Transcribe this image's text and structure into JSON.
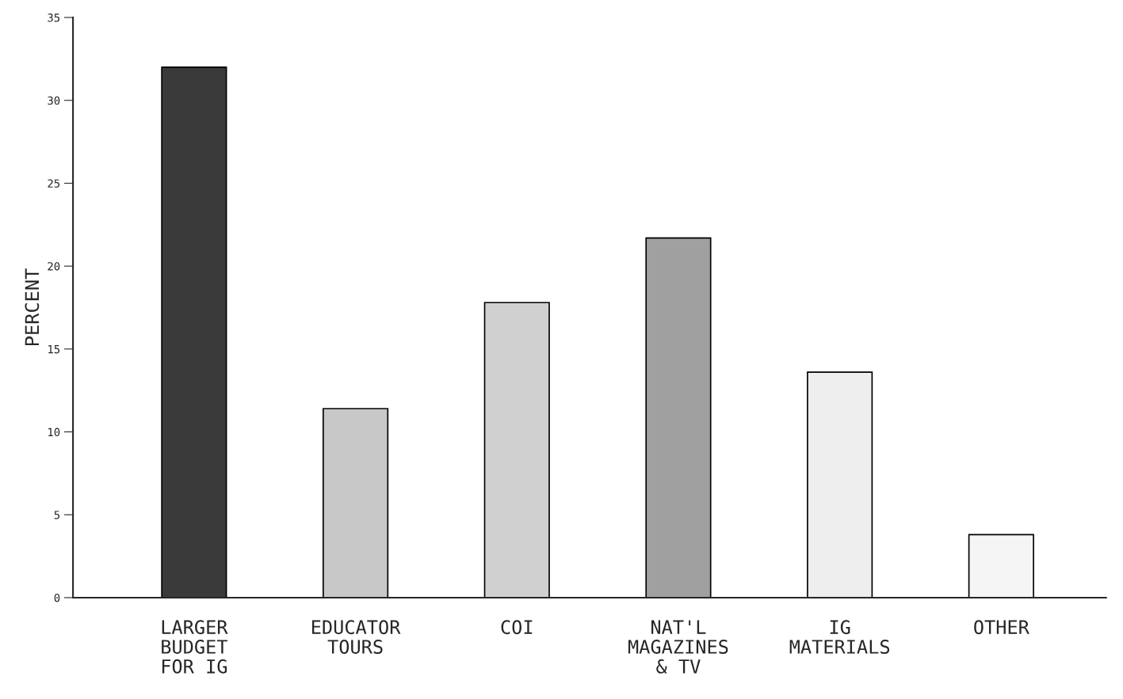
{
  "chart_data": {
    "type": "bar",
    "ylabel": "PERCENT",
    "categories": [
      "LARGER\nBUDGET\nFOR IG",
      "EDUCATOR\nTOURS",
      "COI",
      "NAT'L\nMAGAZINES\n& TV",
      "IG\nMATERIALS",
      "OTHER"
    ],
    "values": [
      32,
      11.4,
      17.8,
      21.7,
      13.6,
      3.8
    ],
    "colors": [
      "#3a3a3a",
      "#c8c8c8",
      "#d0d0d0",
      "#a0a0a0",
      "#eeeeee",
      "#f5f5f5"
    ],
    "ylim": [
      0,
      35
    ],
    "yticks": [
      0,
      5,
      10,
      15,
      20,
      25,
      30,
      35
    ],
    "grid": false,
    "legend": false
  }
}
